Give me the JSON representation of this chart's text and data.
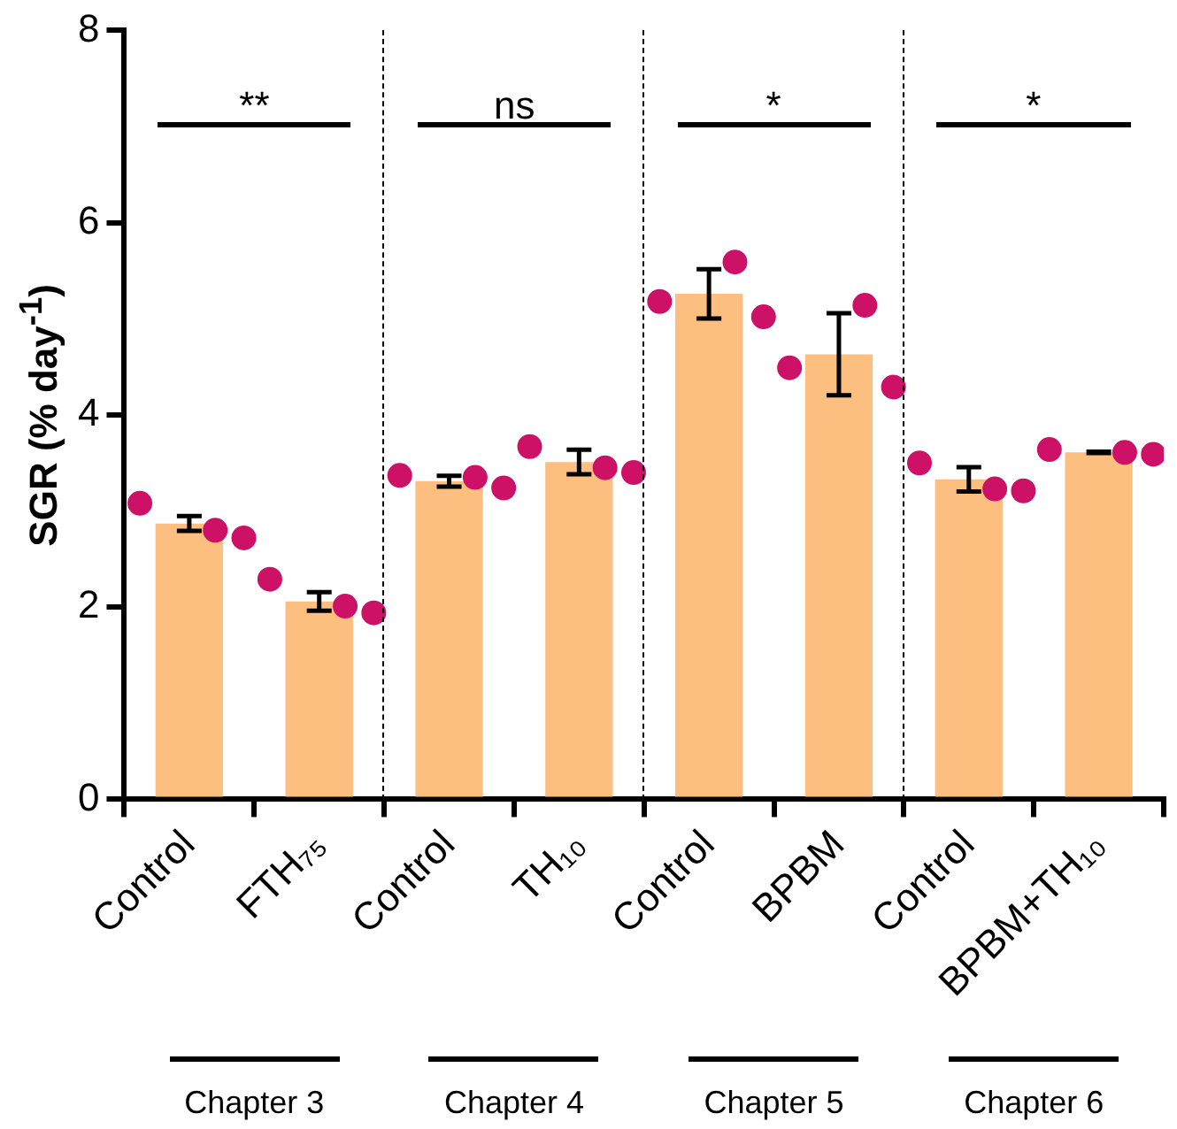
{
  "chart_data": {
    "type": "bar",
    "ylabel": "SGR (% day$^{-1}$)",
    "categories": [
      "Control",
      "FTH₇₅",
      "Control",
      "TH₁₀",
      "Control",
      "BPBM",
      "Control",
      "BPBM+TH₁₀"
    ],
    "series": [
      {
        "type": "bar",
        "color": "#fdbf80",
        "values": [
          2.87,
          2.06,
          3.31,
          3.51,
          5.26,
          4.63,
          3.33,
          3.61
        ],
        "errors": [
          0.1,
          0.12,
          0.08,
          0.15,
          0.28,
          0.45,
          0.15,
          0.03
        ]
      },
      {
        "type": "scatter",
        "color": "#cc1166",
        "values": [
          3.08,
          2.29,
          3.37,
          3.67,
          5.18,
          4.49,
          3.5,
          3.64
        ]
      },
      {
        "type": "scatter",
        "color": "#cc1166",
        "values": [
          2.8,
          2.01,
          3.35,
          3.45,
          5.59,
          5.14,
          3.23,
          3.61
        ]
      },
      {
        "type": "scatter",
        "color": "#cc1166",
        "values": [
          2.72,
          1.94,
          3.24,
          3.4,
          5.02,
          4.29,
          3.21,
          3.59
        ]
      }
    ],
    "ylim": [
      0,
      8
    ],
    "yticks": [
      0,
      2,
      4,
      6,
      8
    ],
    "grid": false,
    "legend": false,
    "marker": "circle",
    "annotations": [
      "**",
      "ns",
      "*",
      "*",
      "Chapter 3",
      "Chapter 4",
      "Chapter 5",
      "Chapter 6"
    ]
  }
}
